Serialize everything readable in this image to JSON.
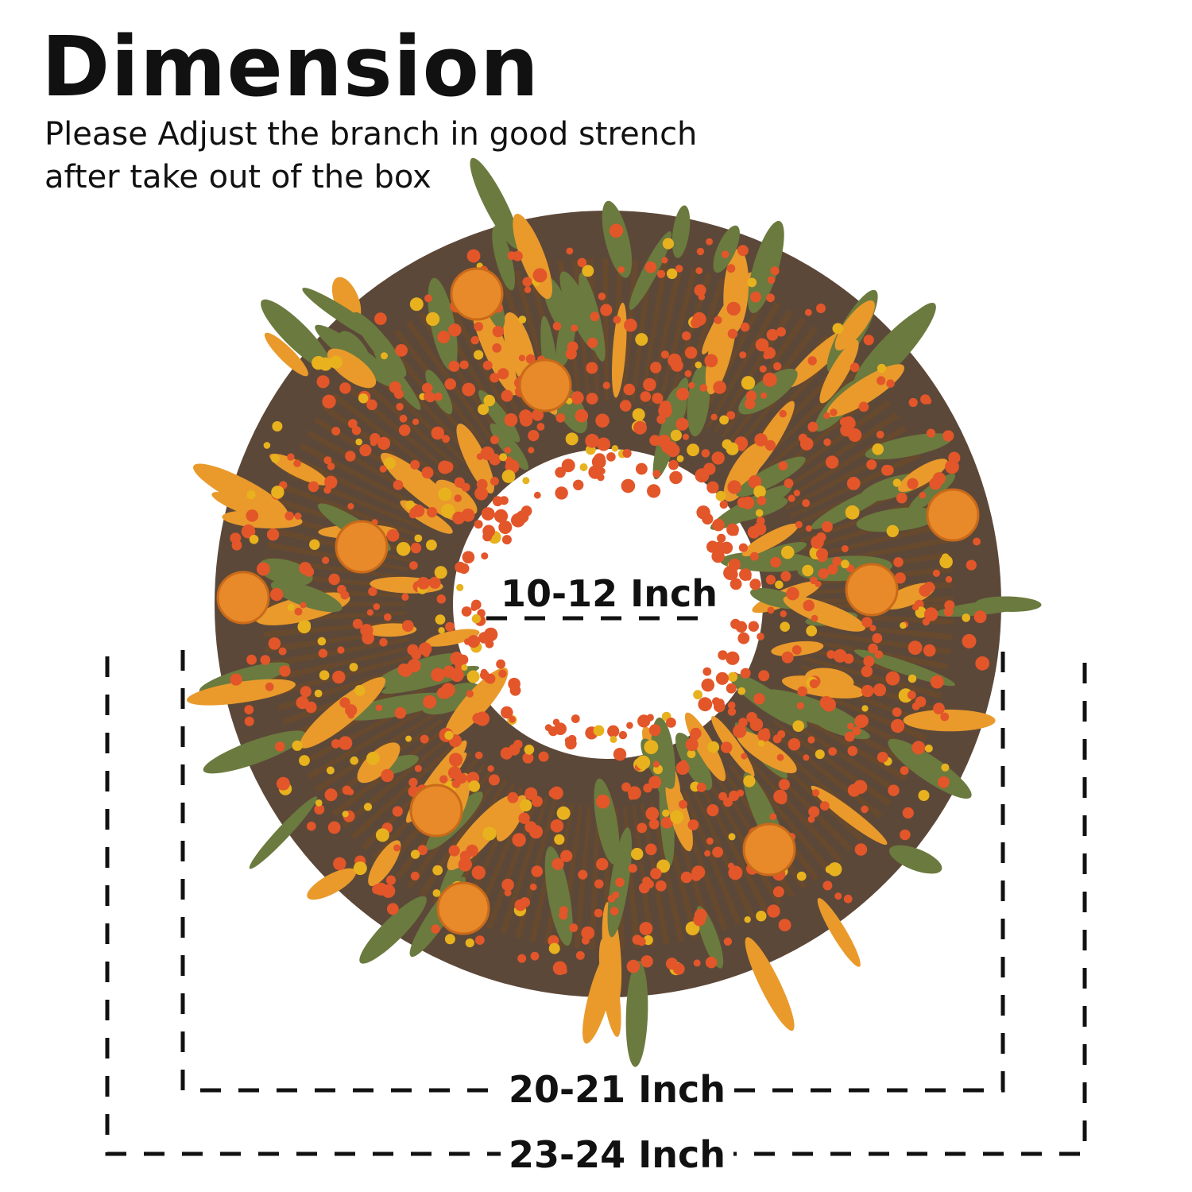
{
  "header": {
    "title": "Dimension",
    "note_line1": "Please Adjust the branch in good strench",
    "note_line2": "after take out of the box"
  },
  "dimensions": {
    "inner": "10-12 Inch",
    "middle": "20-21 Inch",
    "outer": "23-24 Inch"
  },
  "colors": {
    "berry": "#e2562a",
    "leaf_orange": "#e99a2b",
    "leaf_green": "#6b7a3e",
    "twig": "#3a2a1e",
    "pumpkin": "#e8892a"
  },
  "illustration": "fall-wreath-icon"
}
